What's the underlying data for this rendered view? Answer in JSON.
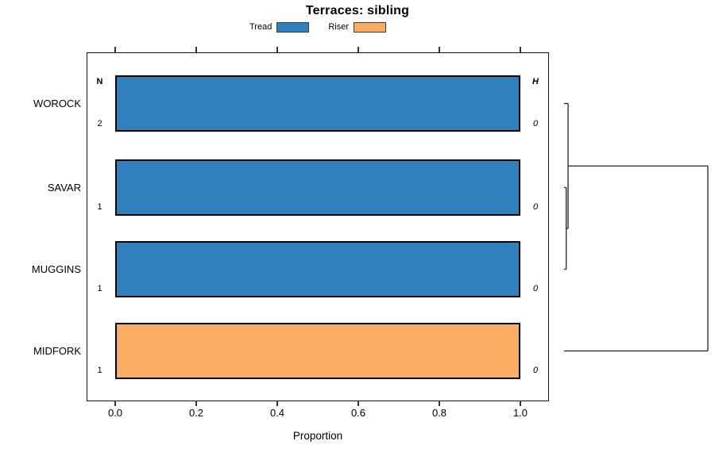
{
  "chart_data": {
    "type": "bar",
    "orientation": "horizontal",
    "stacked": true,
    "title": "Terraces: sibling",
    "xlabel": "Proportion",
    "xlim": [
      0,
      1.07
    ],
    "xtick_values": [
      0,
      0.2,
      0.4,
      0.6,
      0.8,
      1.0
    ],
    "xtick_labels": [
      "0.0",
      "0.2",
      "0.4",
      "0.6",
      "0.8",
      "1.0"
    ],
    "grid": false,
    "legend_position": "top-center",
    "categories": [
      "WOROCK",
      "SAVAR",
      "MUGGINS",
      "MIDFORK"
    ],
    "series": [
      {
        "name": "Tread",
        "color": "#2e81bd",
        "values": [
          1.0,
          1.0,
          1.0,
          0.0
        ]
      },
      {
        "name": "Riser",
        "color": "#fbae63",
        "values": [
          0.0,
          0.0,
          0.0,
          1.0
        ]
      }
    ],
    "annotation_columns": [
      {
        "header": "N",
        "values": [
          "2",
          "1",
          "1",
          "1"
        ]
      },
      {
        "header": "H",
        "values": [
          "0",
          "0",
          "0",
          "0"
        ]
      }
    ],
    "bar_border_color": "#000000",
    "dendrogram": {
      "side": "right",
      "leaves": [
        "WOROCK",
        "SAVAR",
        "MUGGINS",
        "MIDFORK"
      ],
      "merges": [
        {
          "a": "SAVAR",
          "b": "MUGGINS",
          "height": 0.015
        },
        {
          "a": "m0",
          "b": "WOROCK",
          "height": 0.028
        },
        {
          "a": "m1",
          "b": "MIDFORK",
          "height": 1.0
        }
      ]
    }
  }
}
